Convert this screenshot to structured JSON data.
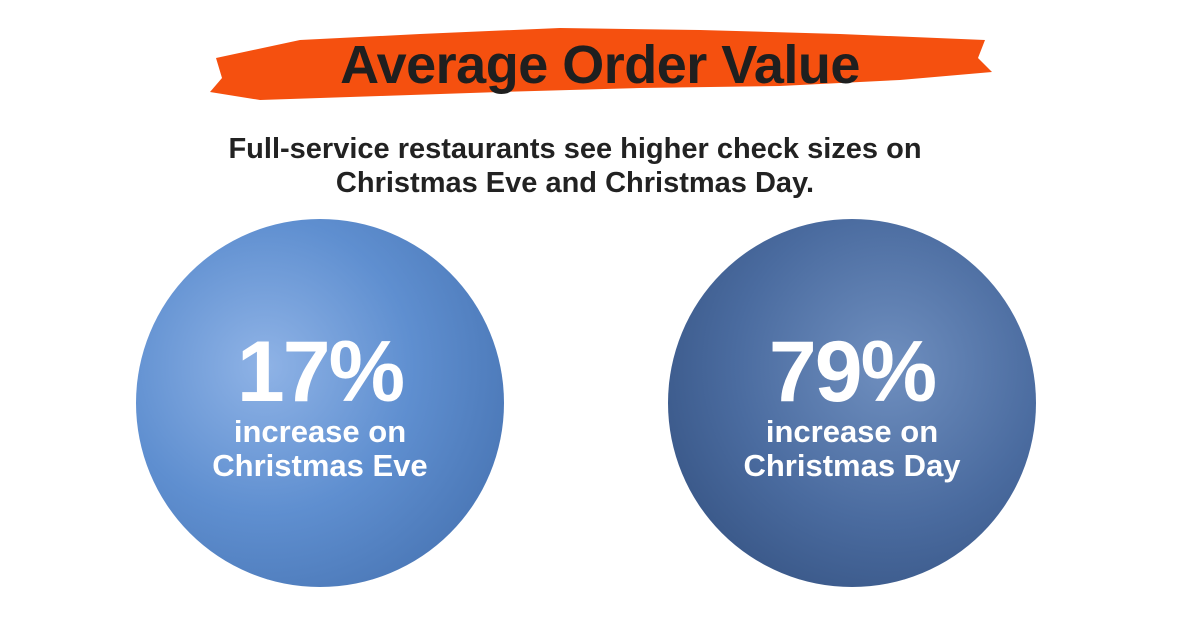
{
  "header": {
    "title": "Average Order Value",
    "subtitle": "Full-service restaurants see higher check sizes on Christmas Eve and Christmas Day."
  },
  "stats": [
    {
      "value": "17%",
      "label_lines": [
        "increase on",
        "Christmas Eve"
      ]
    },
    {
      "value": "79%",
      "label_lines": [
        "increase on",
        "Christmas Day"
      ]
    }
  ]
}
